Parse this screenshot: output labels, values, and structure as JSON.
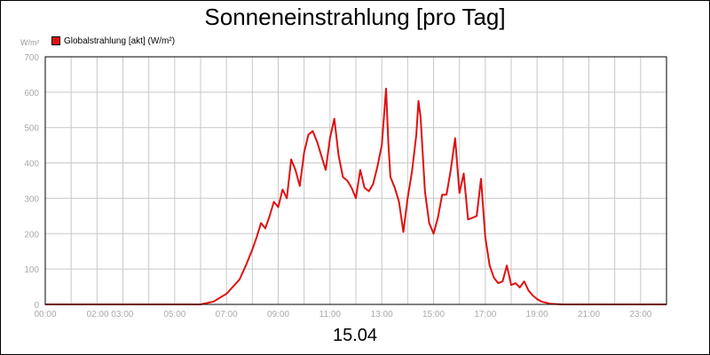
{
  "chart_data": {
    "type": "line",
    "title": "Sonneneinstrahlung [pro Tag]",
    "ylabel": "W/m²",
    "xlabel": "15.04",
    "ylim": [
      0,
      700
    ],
    "xlim_hours": [
      0,
      24
    ],
    "y_ticks": [
      0,
      100,
      200,
      300,
      400,
      500,
      600,
      700
    ],
    "x_ticks": [
      "00:00",
      "02:00 03:00",
      "05:00",
      "07:00",
      "09:00",
      "11:00",
      "13:00",
      "15:00",
      "17:00",
      "19:00",
      "21:00",
      "23:00"
    ],
    "grid": true,
    "legend_position": "top-left",
    "series": [
      {
        "name": "Globalstrahlung [akt] (W/m²)",
        "color": "#e01010",
        "time": [
          "00:00",
          "06:00",
          "06:30",
          "07:00",
          "07:30",
          "07:45",
          "08:00",
          "08:10",
          "08:20",
          "08:30",
          "08:40",
          "08:50",
          "09:00",
          "09:10",
          "09:20",
          "09:30",
          "09:40",
          "09:50",
          "10:00",
          "10:10",
          "10:20",
          "10:30",
          "10:40",
          "10:50",
          "11:00",
          "11:10",
          "11:20",
          "11:30",
          "11:40",
          "11:50",
          "12:00",
          "12:10",
          "12:20",
          "12:30",
          "12:40",
          "12:50",
          "13:00",
          "13:10",
          "13:15",
          "13:20",
          "13:30",
          "13:40",
          "13:50",
          "14:00",
          "14:10",
          "14:20",
          "14:25",
          "14:30",
          "14:40",
          "14:50",
          "15:00",
          "15:10",
          "15:20",
          "15:30",
          "15:40",
          "15:50",
          "16:00",
          "16:10",
          "16:20",
          "16:30",
          "16:40",
          "16:50",
          "17:00",
          "17:10",
          "17:20",
          "17:30",
          "17:40",
          "17:50",
          "18:00",
          "18:10",
          "18:20",
          "18:30",
          "18:40",
          "18:50",
          "19:00",
          "19:10",
          "19:30",
          "20:00",
          "24:00"
        ],
        "values": [
          0,
          0,
          8,
          30,
          70,
          110,
          155,
          190,
          230,
          215,
          250,
          290,
          275,
          325,
          300,
          410,
          380,
          335,
          430,
          480,
          490,
          460,
          420,
          380,
          470,
          525,
          420,
          360,
          350,
          330,
          300,
          380,
          330,
          320,
          340,
          390,
          450,
          610,
          460,
          360,
          330,
          290,
          205,
          300,
          375,
          480,
          575,
          530,
          320,
          230,
          200,
          245,
          310,
          310,
          380,
          470,
          315,
          370,
          240,
          245,
          250,
          355,
          190,
          110,
          75,
          60,
          65,
          110,
          55,
          60,
          48,
          65,
          40,
          25,
          15,
          8,
          2,
          0,
          0
        ]
      }
    ]
  }
}
